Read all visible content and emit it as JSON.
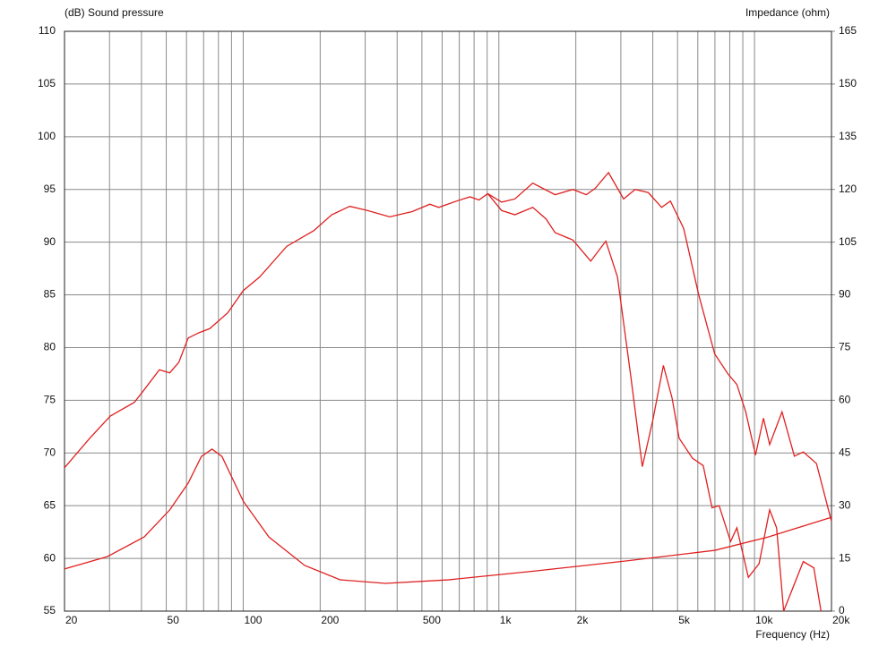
{
  "chart_data": {
    "type": "line",
    "y_label": "(dB)  Sound pressure",
    "y2_label": "Impedance  (ohm)",
    "x_label": "Frequency  (Hz)",
    "xscale": "log",
    "xlim": [
      20,
      20000
    ],
    "xticks": [
      20,
      50,
      100,
      200,
      500,
      {
        "value": 1000,
        "label": "1k"
      },
      {
        "value": 2000,
        "label": "2k"
      },
      {
        "value": 5000,
        "label": "5k"
      },
      {
        "value": 10000,
        "label": "10k"
      },
      {
        "value": 20000,
        "label": "20k"
      }
    ],
    "xgrid_minor": [
      30,
      40,
      60,
      70,
      80,
      90,
      300,
      400,
      600,
      700,
      800,
      900,
      3000,
      4000,
      6000,
      7000,
      8000,
      9000
    ],
    "ylim": [
      55,
      110
    ],
    "yticks": [
      55,
      60,
      65,
      70,
      75,
      80,
      85,
      90,
      95,
      100,
      105,
      110
    ],
    "y2lim": [
      0,
      165
    ],
    "y2ticks": [
      0,
      15,
      30,
      45,
      60,
      75,
      90,
      105,
      120,
      135,
      150,
      165
    ],
    "grid": true,
    "series": [
      {
        "color": "#e02020",
        "x": [
          20,
          25.1,
          30.2,
          37.5,
          41,
          47,
          51.6,
          56,
          60.9,
          67,
          74,
          87,
          100,
          116,
          148,
          189,
          222,
          261,
          306,
          374,
          458,
          537,
          582,
          684,
          771,
          836,
          905,
          1025,
          1155,
          1357,
          1659,
          1948,
          2198,
          2381,
          2684,
          3076,
          3411,
          3843,
          4330,
          4688,
          5283,
          6050,
          6985,
          7870,
          8529,
          9239,
          10090,
          10840,
          11460,
          12810,
          14320,
          15510,
          17470,
          20000
        ],
        "values": [
          68.6,
          71.4,
          73.5,
          74.8,
          76.0,
          77.9,
          77.6,
          78.6,
          80.9,
          81.4,
          81.8,
          83.3,
          85.4,
          86.7,
          89.6,
          91.1,
          92.6,
          93.4,
          93.0,
          92.4,
          92.9,
          93.6,
          93.3,
          93.9,
          94.3,
          94.0,
          94.6,
          93.8,
          94.1,
          95.6,
          94.5,
          95.0,
          94.5,
          95.1,
          96.6,
          94.1,
          95.0,
          94.7,
          93.3,
          93.9,
          91.3,
          85.0,
          79.4,
          77.5,
          76.5,
          73.9,
          69.8,
          73.3,
          70.8,
          73.9,
          69.7,
          70.1,
          69.0,
          63.5
        ]
      },
      {
        "color": "#e02020",
        "x": [
          905,
          1025,
          1155,
          1357,
          1530,
          1659,
          1948,
          2287,
          2620,
          2910,
          3280,
          3640,
          4000,
          4400,
          4760,
          5070,
          5720,
          6300,
          6820,
          7270,
          8060,
          8530,
          9460,
          10420,
          11460,
          12200,
          13000,
          15510,
          17060,
          18200
        ],
        "values": [
          94.6,
          93.0,
          92.6,
          93.3,
          92.2,
          90.9,
          90.2,
          88.2,
          90.1,
          86.7,
          77.3,
          68.7,
          73.1,
          78.3,
          75.2,
          71.4,
          69.5,
          68.8,
          64.8,
          65.0,
          61.6,
          62.9,
          58.2,
          59.5,
          64.6,
          62.9,
          55,
          59.7,
          59.1,
          55
        ]
      },
      {
        "color": "#e02020",
        "axis": "y2",
        "x": [
          20,
          29.4,
          41,
          51.6,
          60.9,
          68.6,
          75.5,
          82.6,
          100,
          126,
          174,
          240,
          360,
          634,
          1418,
          3160,
          7000,
          11320,
          20000
        ],
        "values": [
          12.0,
          15.5,
          21.1,
          28.8,
          36.4,
          44.0,
          46.1,
          44.0,
          31.3,
          21.1,
          13.0,
          8.9,
          7.9,
          8.9,
          11.5,
          14.3,
          17.3,
          21.1,
          26.7
        ]
      }
    ]
  }
}
